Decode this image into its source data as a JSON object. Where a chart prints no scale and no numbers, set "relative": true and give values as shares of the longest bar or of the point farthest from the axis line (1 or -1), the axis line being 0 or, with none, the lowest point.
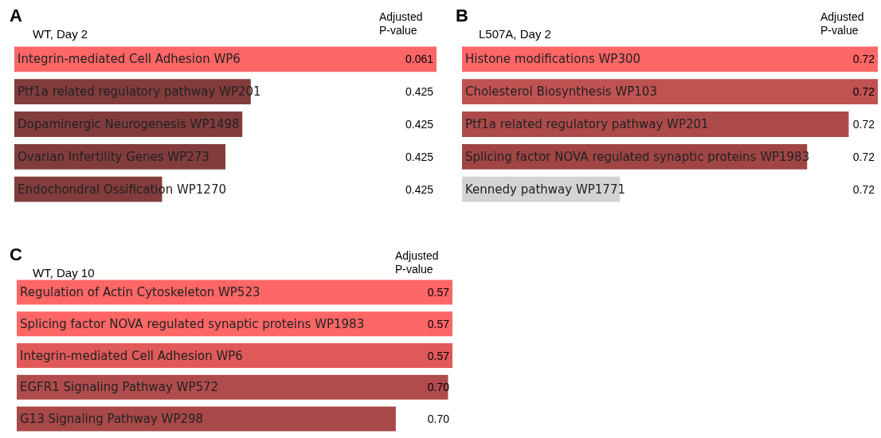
{
  "chart_data": [
    {
      "type": "bar",
      "orientation": "horizontal",
      "relative": true,
      "title": "WT, Day 2",
      "annotations": [
        "A",
        "Adjusted P-value",
        "0.061",
        "0.425",
        "0.425",
        "0.425",
        "0.425"
      ],
      "categories": [
        "Integrin-mediated Cell Adhesion WP6",
        "Ptf1a related regulatory pathway WP201",
        "Dopaminergic Neurogenesis WP1498",
        "Ovarian Infertility Genes WP273",
        "Endochondral Ossification WP1270"
      ],
      "values": [
        1,
        0.56,
        0.54,
        0.5,
        0.35
      ],
      "colors": [
        "#ff6666",
        "#823c3c",
        "#823c3c",
        "#823c3c",
        "#823c3c"
      ]
    },
    {
      "type": "bar",
      "orientation": "horizontal",
      "relative": true,
      "title": "L507A, Day 2",
      "annotations": [
        "B",
        "Adjusted P-value",
        "0.72",
        "0.72",
        "0.72",
        "0.72",
        "0.72"
      ],
      "categories": [
        "Histone modifications WP300",
        "Cholesterol Biosynthesis WP103",
        "Ptf1a related regulatory pathway WP201",
        "Splicing factor NOVA regulated synaptic proteins WP1983",
        "Kennedy pathway WP1771"
      ],
      "values": [
        1,
        1,
        0.93,
        0.83,
        0.38
      ],
      "colors": [
        "#ff6666",
        "#c05252",
        "#ad4a4a",
        "#a04444",
        "#d3d3d3"
      ]
    },
    {
      "type": "bar",
      "orientation": "horizontal",
      "relative": true,
      "title": "WT, Day 10",
      "annotations": [
        "C",
        "Adjusted P-value",
        "0.57",
        "0.57",
        "0.57",
        "0.70",
        "0.70"
      ],
      "categories": [
        "Regulation of Actin Cytoskeleton WP523",
        "Splicing factor NOVA regulated synaptic proteins WP1983",
        "Integrin-mediated Cell Adhesion WP6",
        "EGFR1 Signaling Pathway WP572",
        "G13 Signaling Pathway WP298"
      ],
      "values": [
        1,
        1,
        1,
        0.99,
        0.87
      ],
      "colors": [
        "#ff6666",
        "#ff6666",
        "#e05a5a",
        "#b04c4c",
        "#a84848"
      ]
    }
  ]
}
